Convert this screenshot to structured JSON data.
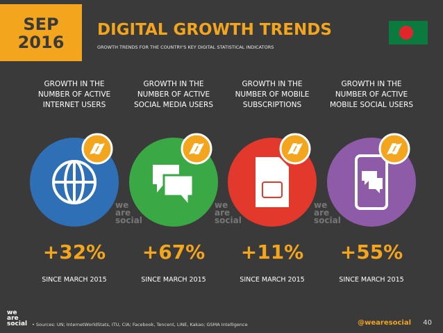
{
  "header": {
    "month": "SEP",
    "year": "2016",
    "title": "DIGITAL GROWTH TRENDS",
    "subtitle": "GROWTH TRENDS FOR THE COUNTRY'S KEY DIGITAL STATISTICAL INDICATORS"
  },
  "panels": [
    {
      "label": [
        "GROWTH IN THE",
        "NUMBER OF ACTIVE",
        "INTERNET USERS"
      ],
      "growth": "+32%",
      "since": "SINCE MARCH 2015"
    },
    {
      "label": [
        "GROWTH IN THE",
        "NUMBER OF ACTIVE",
        "SOCIAL MEDIA USERS"
      ],
      "growth": "+67%",
      "since": "SINCE MARCH 2015"
    },
    {
      "label": [
        "GROWTH IN THE",
        "NUMBER OF MOBILE",
        "SUBSCRIPTIONS"
      ],
      "growth": "+11%",
      "since": "SINCE MARCH 2015"
    },
    {
      "label": [
        "GROWTH IN THE",
        "NUMBER OF ACTIVE",
        "MOBILE SOCIAL USERS"
      ],
      "growth": "+55%",
      "since": "SINCE MARCH 2015"
    }
  ],
  "watermarks": [
    [
      "we",
      "are",
      "social"
    ],
    [
      "we",
      "are",
      "social"
    ],
    [
      "we",
      "are",
      "social"
    ]
  ],
  "footer": {
    "logo": [
      "we",
      "are",
      "social"
    ],
    "sources": "• Sources: UN; InternetWorldStats, ITU, CIA; Facebook, Tencent, LINE, Kakao; GSMA Intelligence",
    "handle": "@wearesocial",
    "page": "40"
  }
}
